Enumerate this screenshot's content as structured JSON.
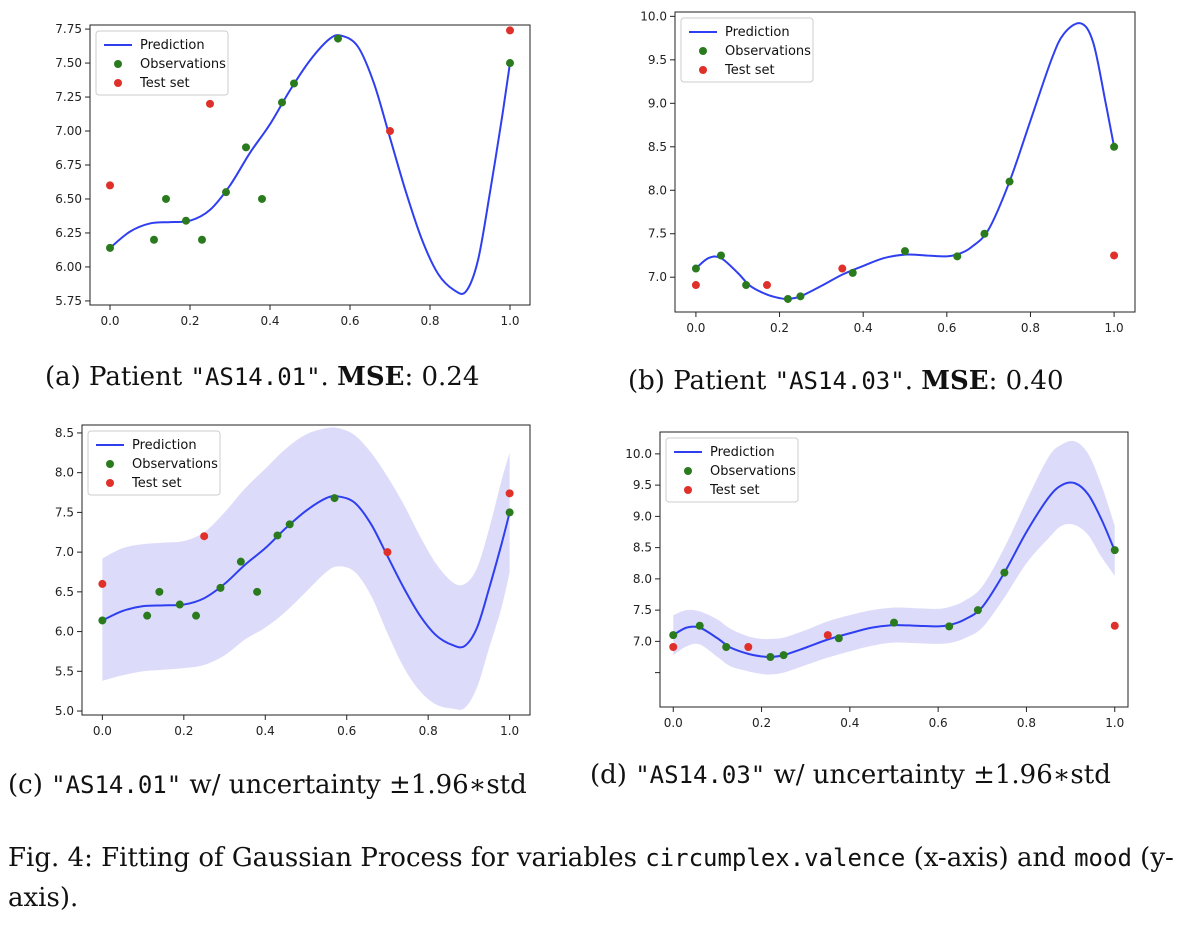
{
  "colors": {
    "prediction": "#2f3ff0",
    "observations": "#2a7a1e",
    "test": "#e0302a",
    "band": "#dcdcfa"
  },
  "legend": {
    "prediction": "Prediction",
    "observations": "Observations",
    "test": "Test set"
  },
  "captions": {
    "a": {
      "label": "(a) Patient ",
      "patient": "\"AS14.01\"",
      "sep": ". ",
      "metric": "MSE",
      "value": ": 0.24"
    },
    "b": {
      "label": "(b) Patient ",
      "patient": "\"AS14.03\"",
      "sep": ". ",
      "metric": "MSE",
      "value": ": 0.40"
    },
    "c": {
      "label": "(c) ",
      "patient": "\"AS14.01\"",
      "rest": " w/ uncertainty ±1.96∗std"
    },
    "d": {
      "label": "(d) ",
      "patient": "\"AS14.03\"",
      "rest": " w/ uncertainty ±1.96∗std"
    }
  },
  "figure_caption": {
    "prefix": "Fig. 4: Fitting of Gaussian Process for variables ",
    "xvar": "circumplex.valence",
    "mid": " (x-axis) and ",
    "yvar": "mood",
    "suffix": " (y-axis)."
  },
  "chart_data": [
    {
      "id": "a",
      "type": "line",
      "title": "",
      "xlabel": "",
      "ylabel": "",
      "xlim": [
        -0.05,
        1.05
      ],
      "ylim": [
        5.72,
        7.78
      ],
      "xticks": [
        0.0,
        0.2,
        0.4,
        0.6,
        0.8,
        1.0
      ],
      "xtick_labels": [
        "0.0",
        "0.2",
        "0.4",
        "0.6",
        "0.8",
        "1.0"
      ],
      "yticks": [
        5.75,
        6.0,
        6.25,
        6.5,
        6.75,
        7.0,
        7.25,
        7.5,
        7.75
      ],
      "ytick_labels": [
        "5.75",
        "6.00",
        "6.25",
        "6.50",
        "6.75",
        "7.00",
        "7.25",
        "7.50",
        "7.75"
      ],
      "uncertainty": false,
      "prediction": {
        "x": [
          0,
          0.05,
          0.1,
          0.15,
          0.2,
          0.25,
          0.3,
          0.35,
          0.4,
          0.45,
          0.5,
          0.55,
          0.58,
          0.62,
          0.66,
          0.7,
          0.74,
          0.78,
          0.82,
          0.86,
          0.89,
          0.92,
          0.95,
          0.98,
          1.0
        ],
        "y": [
          6.14,
          6.26,
          6.32,
          6.33,
          6.34,
          6.42,
          6.6,
          6.84,
          7.05,
          7.3,
          7.52,
          7.68,
          7.7,
          7.62,
          7.35,
          6.95,
          6.55,
          6.2,
          5.95,
          5.83,
          5.82,
          6.05,
          6.55,
          7.1,
          7.5
        ]
      },
      "observations": {
        "x": [
          0.0,
          0.11,
          0.14,
          0.19,
          0.23,
          0.29,
          0.34,
          0.38,
          0.43,
          0.46,
          0.57,
          1.0
        ],
        "y": [
          6.14,
          6.2,
          6.5,
          6.34,
          6.2,
          6.55,
          6.88,
          6.5,
          7.21,
          7.35,
          7.68,
          7.5
        ]
      },
      "test": {
        "x": [
          0.0,
          0.25,
          0.7,
          1.0
        ],
        "y": [
          6.6,
          7.2,
          7.0,
          7.74
        ]
      },
      "legend_position": "upper-left"
    },
    {
      "id": "b",
      "type": "line",
      "title": "",
      "xlabel": "",
      "ylabel": "",
      "xlim": [
        -0.05,
        1.05
      ],
      "ylim": [
        6.6,
        10.05
      ],
      "xticks": [
        0.0,
        0.2,
        0.4,
        0.6,
        0.8,
        1.0
      ],
      "xtick_labels": [
        "0.0",
        "0.2",
        "0.4",
        "0.6",
        "0.8",
        "1.0"
      ],
      "yticks": [
        7.0,
        7.5,
        8.0,
        8.5,
        9.0,
        9.5,
        10.0
      ],
      "ytick_labels": [
        "7.0",
        "7.5",
        "8.0",
        "8.5",
        "9.0",
        "9.5",
        "10.0"
      ],
      "uncertainty": false,
      "prediction": {
        "x": [
          0,
          0.03,
          0.06,
          0.1,
          0.13,
          0.17,
          0.2,
          0.22,
          0.25,
          0.3,
          0.35,
          0.4,
          0.45,
          0.5,
          0.55,
          0.6,
          0.63,
          0.66,
          0.7,
          0.75,
          0.8,
          0.85,
          0.88,
          0.92,
          0.95,
          0.98,
          1.0
        ],
        "y": [
          7.1,
          7.22,
          7.22,
          7.05,
          6.9,
          6.8,
          6.76,
          6.75,
          6.78,
          6.9,
          7.03,
          7.13,
          7.22,
          7.26,
          7.25,
          7.24,
          7.27,
          7.35,
          7.55,
          8.1,
          8.8,
          9.5,
          9.8,
          9.92,
          9.7,
          9.0,
          8.5
        ]
      },
      "observations": {
        "x": [
          0.0,
          0.06,
          0.12,
          0.22,
          0.25,
          0.375,
          0.5,
          0.625,
          0.69,
          0.75,
          1.0
        ],
        "y": [
          7.1,
          7.25,
          6.91,
          6.75,
          6.78,
          7.05,
          7.3,
          7.24,
          7.5,
          8.1,
          8.5
        ]
      },
      "test": {
        "x": [
          0.0,
          0.17,
          0.35,
          1.0
        ],
        "y": [
          6.91,
          6.91,
          7.1,
          7.25
        ]
      },
      "legend_position": "upper-left"
    },
    {
      "id": "c",
      "type": "line",
      "title": "",
      "xlabel": "",
      "ylabel": "",
      "xlim": [
        -0.05,
        1.05
      ],
      "ylim": [
        4.95,
        8.6
      ],
      "xticks": [
        0.0,
        0.2,
        0.4,
        0.6,
        0.8,
        1.0
      ],
      "xtick_labels": [
        "0.0",
        "0.2",
        "0.4",
        "0.6",
        "0.8",
        "1.0"
      ],
      "yticks": [
        5.0,
        5.5,
        6.0,
        6.5,
        7.0,
        7.5,
        8.0,
        8.5
      ],
      "ytick_labels": [
        "5.0",
        "5.5",
        "6.0",
        "6.5",
        "7.0",
        "7.5",
        "8.0",
        "8.5"
      ],
      "uncertainty": true,
      "prediction": {
        "x": [
          0,
          0.05,
          0.1,
          0.15,
          0.2,
          0.25,
          0.3,
          0.35,
          0.4,
          0.45,
          0.5,
          0.55,
          0.58,
          0.62,
          0.66,
          0.7,
          0.74,
          0.78,
          0.82,
          0.86,
          0.89,
          0.92,
          0.95,
          0.98,
          1.0
        ],
        "y": [
          6.14,
          6.26,
          6.32,
          6.33,
          6.34,
          6.42,
          6.6,
          6.84,
          7.05,
          7.3,
          7.52,
          7.68,
          7.7,
          7.62,
          7.35,
          6.95,
          6.55,
          6.2,
          5.95,
          5.83,
          5.82,
          6.05,
          6.55,
          7.1,
          7.5
        ]
      },
      "band_upper": [
        6.92,
        7.05,
        7.1,
        7.12,
        7.14,
        7.25,
        7.5,
        7.8,
        8.05,
        8.3,
        8.48,
        8.56,
        8.56,
        8.47,
        8.25,
        7.95,
        7.6,
        7.2,
        6.85,
        6.62,
        6.6,
        6.8,
        7.3,
        7.9,
        8.25
      ],
      "band_lower": [
        5.38,
        5.45,
        5.5,
        5.52,
        5.54,
        5.58,
        5.7,
        5.9,
        6.05,
        6.25,
        6.5,
        6.75,
        6.82,
        6.75,
        6.45,
        5.98,
        5.55,
        5.25,
        5.08,
        5.03,
        5.04,
        5.3,
        5.8,
        6.3,
        6.75
      ],
      "observations": {
        "x": [
          0.0,
          0.11,
          0.14,
          0.19,
          0.23,
          0.29,
          0.34,
          0.38,
          0.43,
          0.46,
          0.57,
          1.0
        ],
        "y": [
          6.14,
          6.2,
          6.5,
          6.34,
          6.2,
          6.55,
          6.88,
          6.5,
          7.21,
          7.35,
          7.68,
          7.5
        ]
      },
      "test": {
        "x": [
          0.0,
          0.25,
          0.7,
          1.0
        ],
        "y": [
          6.6,
          7.2,
          7.0,
          7.74
        ]
      },
      "legend_position": "upper-left"
    },
    {
      "id": "d",
      "type": "line",
      "title": "",
      "xlabel": "",
      "ylabel": "",
      "xlim": [
        -0.03,
        1.03
      ],
      "ylim": [
        5.95,
        10.35
      ],
      "xticks": [
        0.0,
        0.2,
        0.4,
        0.6,
        0.8,
        1.0
      ],
      "xtick_labels": [
        "0.0",
        "0.2",
        "0.4",
        "0.6",
        "0.8",
        "1.0"
      ],
      "yticks": [
        7.0,
        7.5,
        8.0,
        8.5,
        9.0,
        9.5,
        10.0
      ],
      "ytick_labels": [
        "7.0",
        "7.5",
        "8.0",
        "8.5",
        "9.0",
        "9.5",
        "10.0"
      ],
      "extra_ticks": [
        6.5
      ],
      "uncertainty": true,
      "prediction": {
        "x": [
          0,
          0.03,
          0.06,
          0.1,
          0.13,
          0.17,
          0.2,
          0.22,
          0.25,
          0.3,
          0.35,
          0.4,
          0.45,
          0.5,
          0.55,
          0.6,
          0.63,
          0.66,
          0.7,
          0.75,
          0.8,
          0.85,
          0.88,
          0.91,
          0.94,
          0.97,
          1.0
        ],
        "y": [
          7.1,
          7.22,
          7.22,
          7.05,
          6.9,
          6.8,
          6.76,
          6.75,
          6.78,
          6.9,
          7.03,
          7.13,
          7.22,
          7.26,
          7.25,
          7.24,
          7.27,
          7.35,
          7.55,
          8.1,
          8.75,
          9.3,
          9.5,
          9.53,
          9.35,
          8.95,
          8.45
        ]
      },
      "band_upper": [
        7.42,
        7.5,
        7.48,
        7.35,
        7.2,
        7.08,
        7.04,
        7.04,
        7.06,
        7.18,
        7.32,
        7.42,
        7.5,
        7.54,
        7.53,
        7.52,
        7.56,
        7.65,
        7.88,
        8.5,
        9.25,
        9.95,
        10.15,
        10.2,
        10.0,
        9.5,
        8.85
      ],
      "band_lower": [
        6.78,
        6.92,
        6.95,
        6.75,
        6.6,
        6.52,
        6.48,
        6.47,
        6.5,
        6.62,
        6.74,
        6.84,
        6.93,
        6.98,
        6.97,
        6.96,
        6.98,
        7.05,
        7.22,
        7.7,
        8.25,
        8.65,
        8.85,
        8.86,
        8.7,
        8.35,
        8.05
      ],
      "observations": {
        "x": [
          0.0,
          0.06,
          0.12,
          0.22,
          0.25,
          0.375,
          0.5,
          0.625,
          0.69,
          0.75,
          1.0
        ],
        "y": [
          7.1,
          7.25,
          6.91,
          6.75,
          6.78,
          7.05,
          7.3,
          7.24,
          7.5,
          8.1,
          8.46
        ]
      },
      "test": {
        "x": [
          0.0,
          0.17,
          0.35,
          1.0
        ],
        "y": [
          6.91,
          6.91,
          7.1,
          7.25
        ]
      },
      "legend_position": "upper-left"
    }
  ]
}
